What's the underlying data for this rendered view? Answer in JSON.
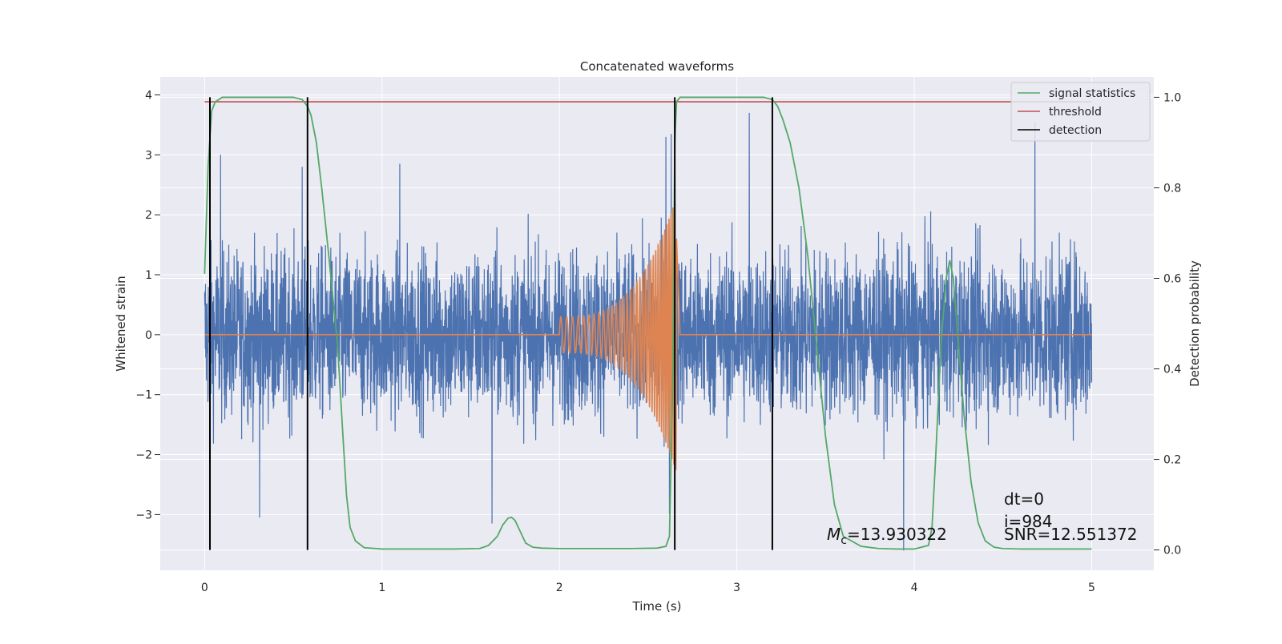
{
  "chart_data": {
    "type": "line",
    "title": "Concatenated waveforms",
    "xlabel": "Time (s)",
    "ylabel": "Whitened strain",
    "y2label": "Detection probability",
    "xlim": [
      -0.25,
      5.35
    ],
    "ylim": [
      -3.93,
      4.3
    ],
    "y2lim": [
      -0.045,
      1.045
    ],
    "xticks": [
      0,
      1,
      2,
      3,
      4,
      5
    ],
    "yticks": [
      -3,
      -2,
      -1,
      0,
      1,
      2,
      3,
      4
    ],
    "yticklabels": [
      "−3",
      "−2",
      "−1",
      "0",
      "1",
      "2",
      "3",
      "4"
    ],
    "y2ticks": [
      0.0,
      0.2,
      0.4,
      0.6,
      0.8,
      1.0
    ],
    "y2ticklabels": [
      "0.0",
      "0.2",
      "0.4",
      "0.6",
      "0.8",
      "1.0"
    ],
    "grid": true,
    "legend_position": "top-right",
    "strain": {
      "x_start": 0.0,
      "x_end": 5.0,
      "noise_sigma": 1.0,
      "max_excursions": [
        {
          "x": 0.09,
          "y": 3.0
        },
        {
          "x": 0.55,
          "y": 2.8
        },
        {
          "x": 1.1,
          "y": 2.85
        },
        {
          "x": 2.6,
          "y": 3.3
        },
        {
          "x": 2.63,
          "y": 3.35
        },
        {
          "x": 3.07,
          "y": 3.7
        },
        {
          "x": 4.68,
          "y": 3.55
        },
        {
          "x": 3.94,
          "y": -3.6
        },
        {
          "x": 3.2,
          "y": -3.5
        },
        {
          "x": 0.31,
          "y": -3.05
        },
        {
          "x": 1.62,
          "y": -3.15
        },
        {
          "x": 2.62,
          "y": -3.0
        }
      ]
    },
    "chirp": {
      "x_start": 2.0,
      "x_end": 2.66,
      "amp_start": 0.3,
      "amp_end": 2.3,
      "f_start": 30,
      "f_end": 95
    },
    "series": [
      {
        "name": "signal statistics",
        "axis": "right",
        "x": [
          0.0,
          0.02,
          0.04,
          0.06,
          0.1,
          0.2,
          0.35,
          0.5,
          0.55,
          0.58,
          0.6,
          0.63,
          0.66,
          0.7,
          0.75,
          0.78,
          0.8,
          0.82,
          0.85,
          0.9,
          1.0,
          1.2,
          1.4,
          1.55,
          1.6,
          1.65,
          1.68,
          1.71,
          1.73,
          1.75,
          1.78,
          1.81,
          1.85,
          1.9,
          2.0,
          2.2,
          2.4,
          2.55,
          2.6,
          2.62,
          2.64,
          2.65,
          2.66,
          2.68,
          2.72,
          2.8,
          3.0,
          3.15,
          3.2,
          3.23,
          3.26,
          3.3,
          3.35,
          3.4,
          3.45,
          3.5,
          3.55,
          3.6,
          3.7,
          3.8,
          3.9,
          4.0,
          4.08,
          4.1,
          4.12,
          4.15,
          4.18,
          4.2,
          4.22,
          4.24,
          4.28,
          4.32,
          4.36,
          4.4,
          4.45,
          4.5,
          4.6,
          4.8,
          5.0
        ],
        "y": [
          0.61,
          0.85,
          0.97,
          0.99,
          1.0,
          1.0,
          1.0,
          1.0,
          0.995,
          0.98,
          0.96,
          0.9,
          0.8,
          0.65,
          0.45,
          0.25,
          0.12,
          0.05,
          0.02,
          0.005,
          0.002,
          0.002,
          0.002,
          0.003,
          0.01,
          0.03,
          0.055,
          0.07,
          0.072,
          0.065,
          0.04,
          0.015,
          0.006,
          0.004,
          0.003,
          0.003,
          0.003,
          0.004,
          0.008,
          0.03,
          0.4,
          0.9,
          0.99,
          1.0,
          1.0,
          1.0,
          1.0,
          1.0,
          0.995,
          0.98,
          0.95,
          0.9,
          0.8,
          0.65,
          0.45,
          0.25,
          0.1,
          0.03,
          0.008,
          0.003,
          0.002,
          0.002,
          0.01,
          0.05,
          0.2,
          0.45,
          0.6,
          0.64,
          0.6,
          0.5,
          0.3,
          0.15,
          0.06,
          0.02,
          0.006,
          0.003,
          0.002,
          0.002,
          0.002
        ],
        "color": "#55a868"
      },
      {
        "name": "threshold",
        "axis": "right",
        "x": [
          0.0,
          5.0
        ],
        "y": [
          0.99,
          0.99
        ],
        "color": "#c44e52"
      },
      {
        "name": "detection",
        "axis": "right",
        "x": [
          0.03,
          0.58,
          2.65,
          3.2
        ],
        "y_range": [
          0.0,
          1.0
        ],
        "color": "#000000"
      }
    ],
    "annotations": [
      {
        "id": "mc",
        "prefix": "M",
        "subscript": "c",
        "suffix": "=13.930322",
        "x": 3.5,
        "y": -3.35
      },
      {
        "id": "dt",
        "text": "dt=0",
        "x": 4.5,
        "y": -2.75
      },
      {
        "id": "i",
        "text": "i=984",
        "x": 4.5,
        "y": -3.1
      },
      {
        "id": "snr",
        "text": "SNR=12.551372",
        "x": 4.5,
        "y": -3.38
      }
    ],
    "colors": {
      "background": "#eaeaf2",
      "grid": "#ffffff",
      "strain": "#4c72b0",
      "chirp": "#dd8452",
      "statistics": "#55a868",
      "threshold": "#c44e52",
      "detection": "#000000"
    }
  }
}
